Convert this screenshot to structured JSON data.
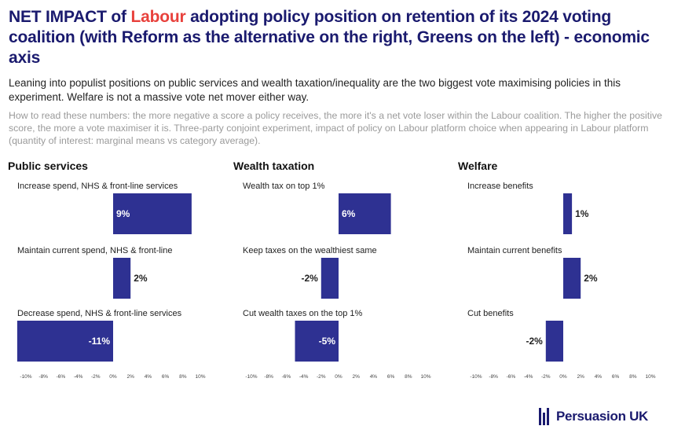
{
  "title": {
    "part1": "NET IMPACT of ",
    "highlight": "Labour",
    "part2": " adopting policy position on retention of its 2024 voting coalition (with Reform as the alternative on the right, Greens on the left) - economic axis",
    "highlight_color": "#e8413c"
  },
  "subtitle": "Leaning into populist positions on public services and wealth taxation/inequality are the two biggest vote maximising policies in this experiment. Welfare is not a massive vote net mover either way.",
  "howto": "How to read these numbers: the more negative a score a policy receives, the more it's a net vote loser within the Labour coalition. The higher the positive score, the more a vote maximiser it is. Three-party conjoint experiment, impact of policy on Labour platform choice when appearing in Labour platform (quantity of interest: marginal means vs category average).",
  "colors": {
    "bar": "#2e3192",
    "title": "#1a1a6e",
    "accent": "#e8413c"
  },
  "chart_data": [
    {
      "type": "bar",
      "orientation": "horizontal",
      "title": "Public services",
      "categories": [
        "Increase spend, NHS & front-line services",
        "Maintain current spend, NHS & front-line",
        "Decrease spend, NHS & front-line services"
      ],
      "values": [
        9,
        2,
        -11
      ],
      "value_labels": [
        "9%",
        "2%",
        "-11%"
      ],
      "xlim": [
        -10,
        10
      ],
      "ticks": [
        "-10%",
        "-8%",
        "-6%",
        "-4%",
        "-2%",
        "0%",
        "2%",
        "4%",
        "6%",
        "8%",
        "10%"
      ]
    },
    {
      "type": "bar",
      "orientation": "horizontal",
      "title": "Wealth taxation",
      "categories": [
        "Wealth tax on top 1%",
        "Keep taxes on the wealthiest same",
        "Cut wealth taxes on the top 1%"
      ],
      "values": [
        6,
        -2,
        -5
      ],
      "value_labels": [
        "6%",
        "-2%",
        "-5%"
      ],
      "xlim": [
        -10,
        10
      ],
      "ticks": [
        "-10%",
        "-8%",
        "-6%",
        "-4%",
        "-2%",
        "0%",
        "2%",
        "4%",
        "6%",
        "8%",
        "10%"
      ]
    },
    {
      "type": "bar",
      "orientation": "horizontal",
      "title": "Welfare",
      "categories": [
        "Increase benefits",
        "Maintain current benefits",
        "Cut benefits"
      ],
      "values": [
        1,
        2,
        -2
      ],
      "value_labels": [
        "1%",
        "2%",
        "-2%"
      ],
      "xlim": [
        -10,
        10
      ],
      "ticks": [
        "-10%",
        "-8%",
        "-6%",
        "-4%",
        "-2%",
        "0%",
        "2%",
        "4%",
        "6%",
        "8%",
        "10%"
      ]
    }
  ],
  "logo": {
    "text": "Persuasion UK",
    "icon": "persuasion-bars-icon"
  }
}
